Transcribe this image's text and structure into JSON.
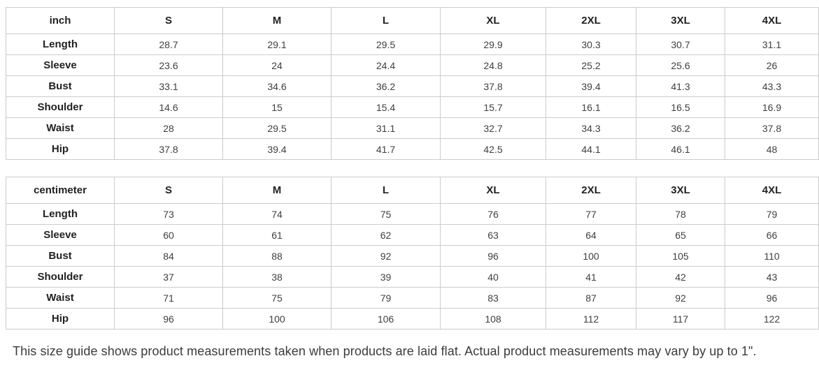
{
  "tables": [
    {
      "unit_header": "inch",
      "sizes": [
        "S",
        "M",
        "L",
        "XL",
        "2XL",
        "3XL",
        "4XL"
      ],
      "rows": [
        {
          "label": "Length",
          "values": [
            "28.7",
            "29.1",
            "29.5",
            "29.9",
            "30.3",
            "30.7",
            "31.1"
          ]
        },
        {
          "label": "Sleeve",
          "values": [
            "23.6",
            "24",
            "24.4",
            "24.8",
            "25.2",
            "25.6",
            "26"
          ]
        },
        {
          "label": "Bust",
          "values": [
            "33.1",
            "34.6",
            "36.2",
            "37.8",
            "39.4",
            "41.3",
            "43.3"
          ]
        },
        {
          "label": "Shoulder",
          "values": [
            "14.6",
            "15",
            "15.4",
            "15.7",
            "16.1",
            "16.5",
            "16.9"
          ]
        },
        {
          "label": "Waist",
          "values": [
            "28",
            "29.5",
            "31.1",
            "32.7",
            "34.3",
            "36.2",
            "37.8"
          ]
        },
        {
          "label": "Hip",
          "values": [
            "37.8",
            "39.4",
            "41.7",
            "42.5",
            "44.1",
            "46.1",
            "48"
          ]
        }
      ]
    },
    {
      "unit_header": "centimeter",
      "sizes": [
        "S",
        "M",
        "L",
        "XL",
        "2XL",
        "3XL",
        "4XL"
      ],
      "rows": [
        {
          "label": "Length",
          "values": [
            "73",
            "74",
            "75",
            "76",
            "77",
            "78",
            "79"
          ]
        },
        {
          "label": "Sleeve",
          "values": [
            "60",
            "61",
            "62",
            "63",
            "64",
            "65",
            "66"
          ]
        },
        {
          "label": "Bust",
          "values": [
            "84",
            "88",
            "92",
            "96",
            "100",
            "105",
            "110"
          ]
        },
        {
          "label": "Shoulder",
          "values": [
            "37",
            "38",
            "39",
            "40",
            "41",
            "42",
            "43"
          ]
        },
        {
          "label": "Waist",
          "values": [
            "71",
            "75",
            "79",
            "83",
            "87",
            "92",
            "96"
          ]
        },
        {
          "label": "Hip",
          "values": [
            "96",
            "100",
            "106",
            "108",
            "112",
            "117",
            "122"
          ]
        }
      ]
    }
  ],
  "footer": {
    "note": "This size guide shows product measurements taken when products are laid flat. Actual product measurements may vary by up to 1\"."
  },
  "colors": {
    "border": "#cccccc",
    "header_text": "#222222",
    "value_text": "#3f3f3f",
    "note_text": "#3b3b3b",
    "background": "#ffffff"
  }
}
